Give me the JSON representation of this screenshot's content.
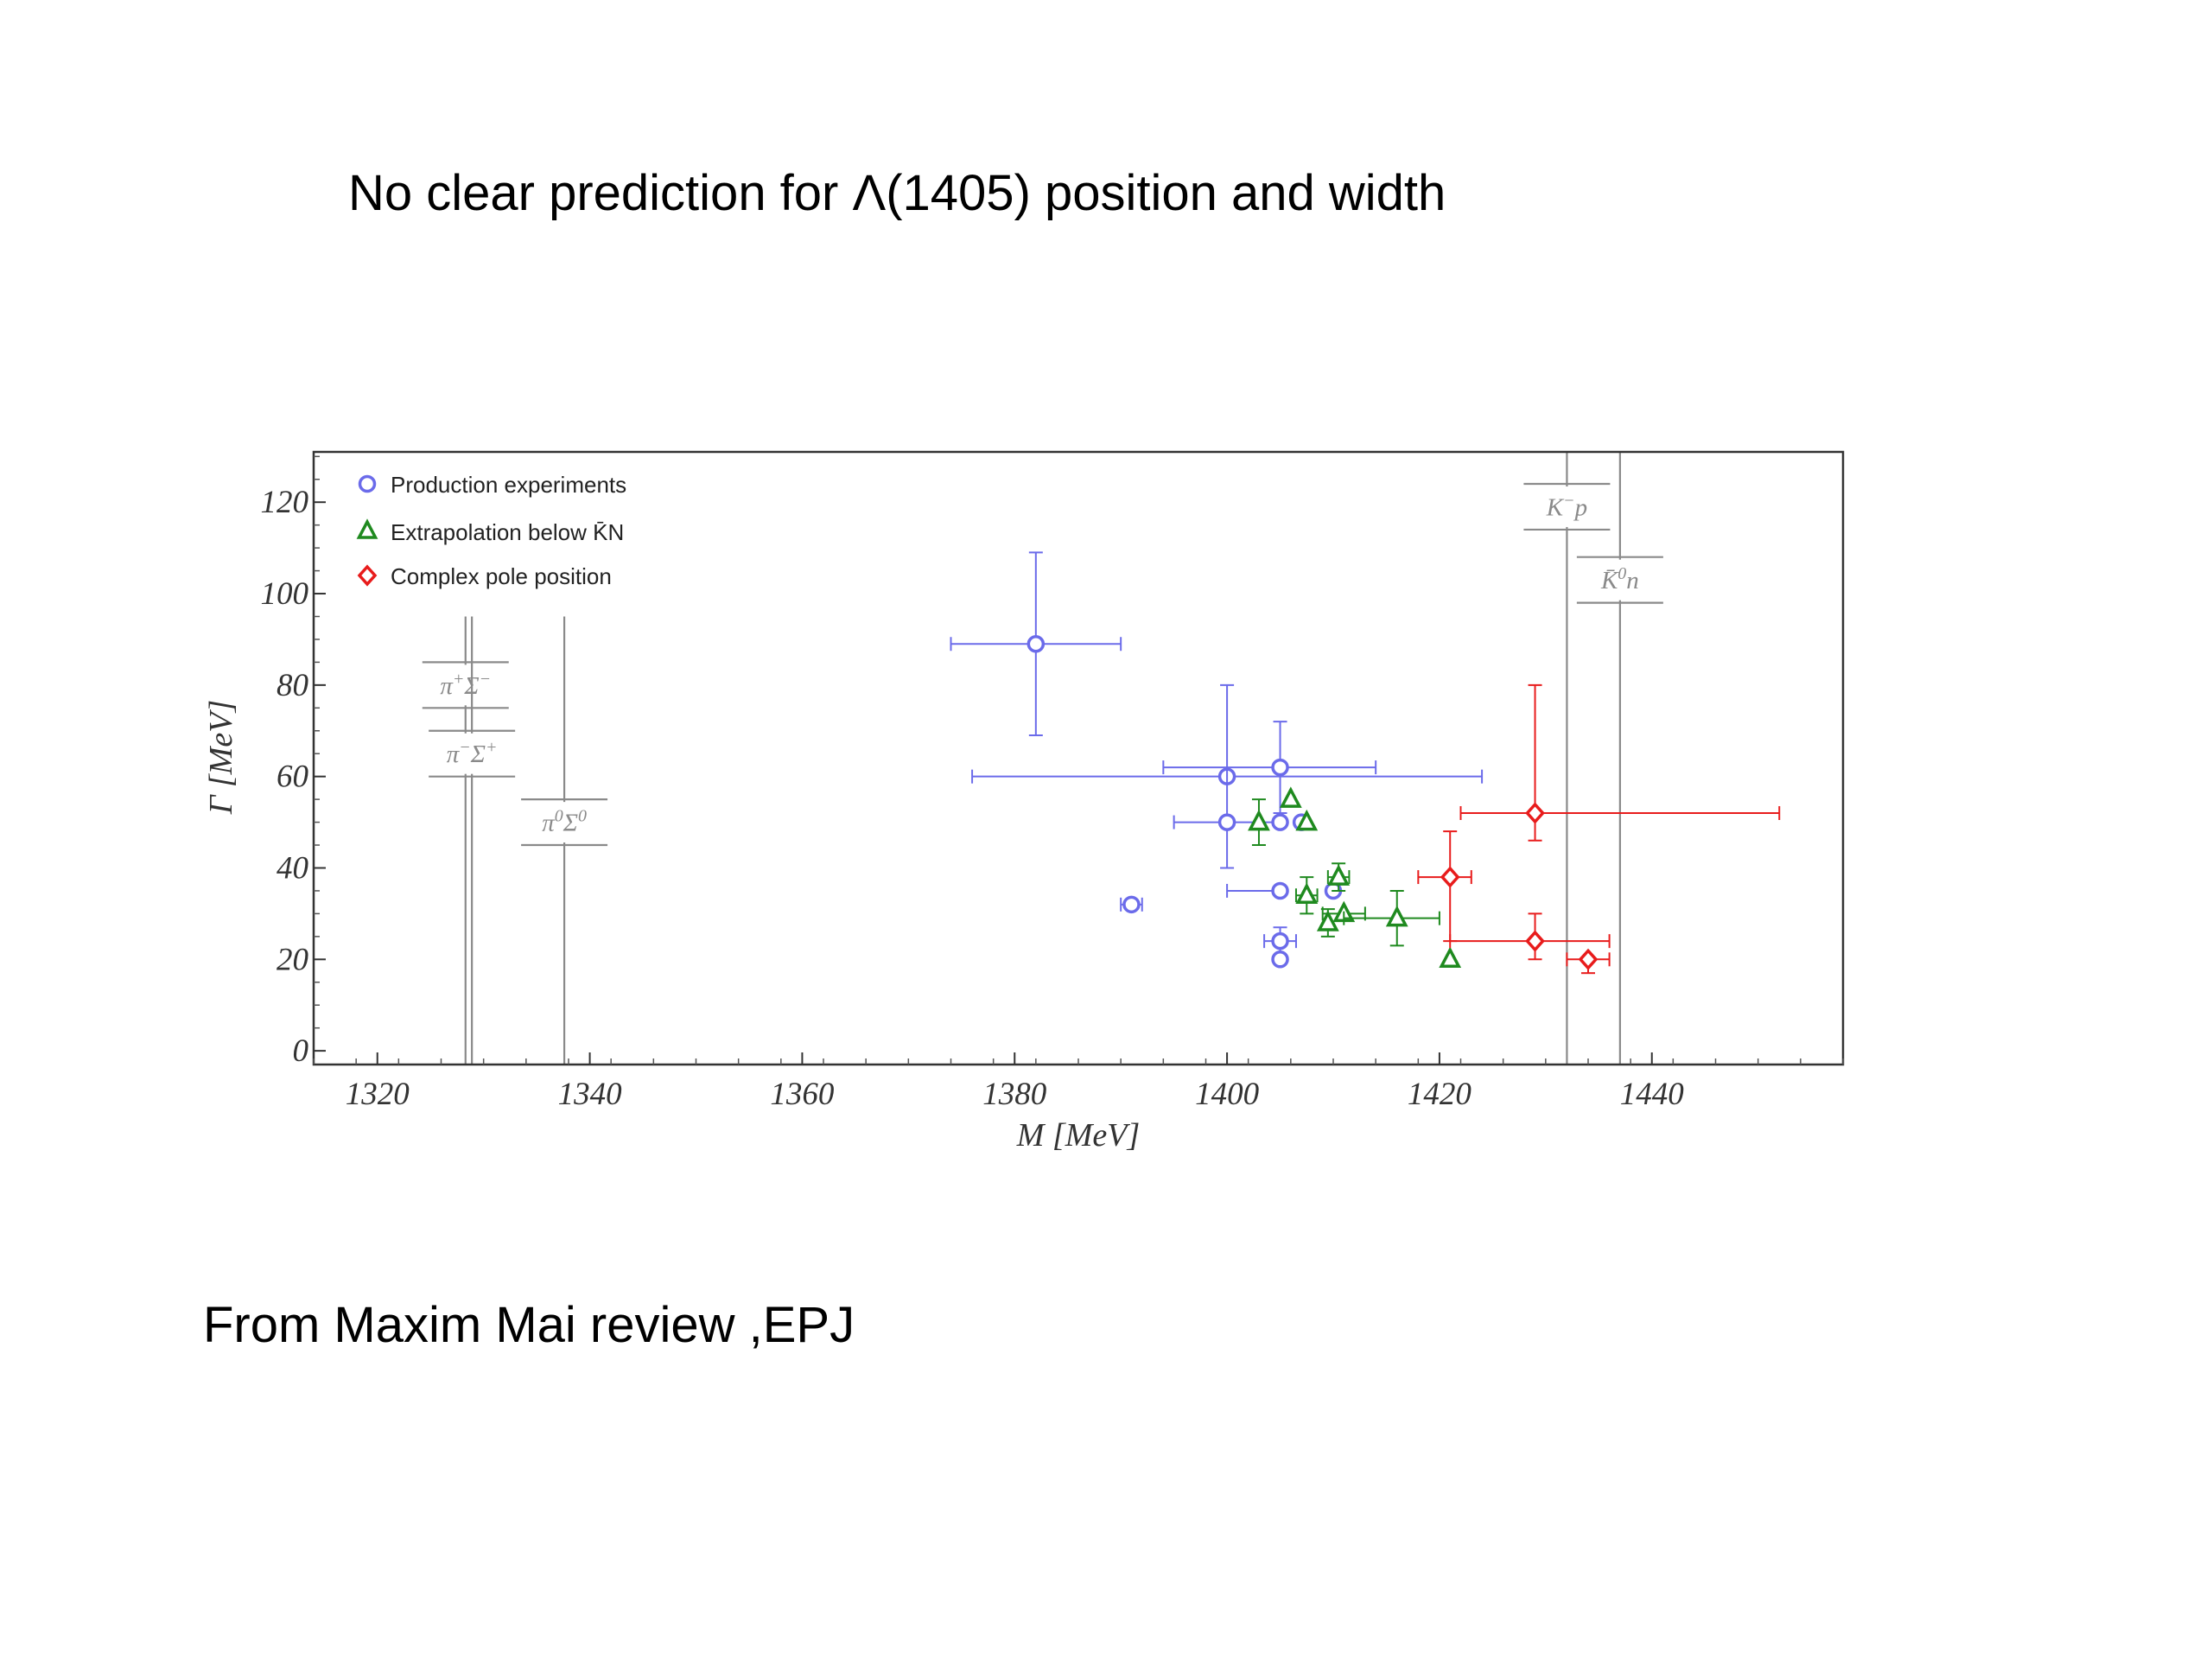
{
  "slide": {
    "title": "No clear prediction for Λ(1405)  position and width",
    "footer": "From Maxim Mai review ,EPJ"
  },
  "chart_data": {
    "type": "scatter",
    "title": "",
    "xlabel": "M [MeV]",
    "ylabel": "Γ [MeV]",
    "xlim": [
      1314,
      1458
    ],
    "ylim": [
      -3,
      131
    ],
    "xticks": [
      1320,
      1340,
      1360,
      1380,
      1400,
      1420,
      1440
    ],
    "yticks": [
      0,
      20,
      40,
      60,
      80,
      100,
      120
    ],
    "grid": false,
    "legend_position": "top-left",
    "colors": {
      "production": "#6b6bea",
      "extrapolation": "#1f8a1f",
      "pole": "#e81c1c",
      "threshold": "#8a8a8a"
    },
    "series": [
      {
        "name": "Production experiments",
        "marker": "circle",
        "points": [
          {
            "x": 1382,
            "y": 89,
            "xerr": [
              8,
              8
            ],
            "yerr": [
              20,
              20
            ]
          },
          {
            "x": 1400,
            "y": 60,
            "xerr": [
              24,
              24
            ],
            "yerr": [
              0,
              0
            ]
          },
          {
            "x": 1405,
            "y": 62,
            "xerr": [
              11,
              9
            ],
            "yerr": [
              10,
              10
            ]
          },
          {
            "x": 1400,
            "y": 50,
            "xerr": [
              5,
              5
            ],
            "yerr": [
              10,
              30
            ]
          },
          {
            "x": 1405,
            "y": 50,
            "xerr": [
              0,
              0
            ],
            "yerr": [
              0,
              0
            ]
          },
          {
            "x": 1407,
            "y": 50,
            "xerr": [
              0,
              0
            ],
            "yerr": [
              0,
              0
            ]
          },
          {
            "x": 1391,
            "y": 32,
            "xerr": [
              1,
              1
            ],
            "yerr": [
              0,
              0
            ]
          },
          {
            "x": 1405,
            "y": 35,
            "xerr": [
              5,
              0
            ],
            "yerr": [
              0,
              0
            ]
          },
          {
            "x": 1410,
            "y": 35,
            "xerr": [
              0,
              0
            ],
            "yerr": [
              0,
              0
            ]
          },
          {
            "x": 1405,
            "y": 24,
            "xerr": [
              1.5,
              1.5
            ],
            "yerr": [
              3,
              3
            ]
          },
          {
            "x": 1405,
            "y": 20,
            "xerr": [
              0,
              0
            ],
            "yerr": [
              0,
              0
            ]
          }
        ]
      },
      {
        "name": "Extrapolation below K̄N",
        "marker": "triangle",
        "points": [
          {
            "x": 1406,
            "y": 55,
            "xerr": [
              0,
              0
            ],
            "yerr": [
              0,
              0
            ]
          },
          {
            "x": 1403,
            "y": 50,
            "xerr": [
              0,
              0
            ],
            "yerr": [
              5,
              5
            ]
          },
          {
            "x": 1407.5,
            "y": 50,
            "xerr": [
              0,
              0
            ],
            "yerr": [
              0,
              0
            ]
          },
          {
            "x": 1410.5,
            "y": 38,
            "xerr": [
              1,
              1
            ],
            "yerr": [
              3,
              3
            ]
          },
          {
            "x": 1407.5,
            "y": 34,
            "xerr": [
              1,
              1
            ],
            "yerr": [
              4,
              4
            ]
          },
          {
            "x": 1411,
            "y": 30,
            "xerr": [
              2,
              2
            ],
            "yerr": [
              0,
              0
            ]
          },
          {
            "x": 1409.5,
            "y": 28,
            "xerr": [
              0,
              0
            ],
            "yerr": [
              3,
              3
            ]
          },
          {
            "x": 1416,
            "y": 29,
            "xerr": [
              5,
              4
            ],
            "yerr": [
              6,
              6
            ]
          },
          {
            "x": 1421,
            "y": 20,
            "xerr": [
              0,
              0
            ],
            "yerr": [
              0,
              0
            ]
          }
        ]
      },
      {
        "name": "Complex pole position",
        "marker": "diamond",
        "points": [
          {
            "x": 1429,
            "y": 52,
            "xerr": [
              7,
              23
            ],
            "yerr": [
              6,
              28
            ]
          },
          {
            "x": 1421,
            "y": 38,
            "xerr": [
              3,
              2
            ],
            "yerr": [
              14,
              10
            ]
          },
          {
            "x": 1429,
            "y": 24,
            "xerr": [
              8,
              7
            ],
            "yerr": [
              4,
              6
            ]
          },
          {
            "x": 1434,
            "y": 20,
            "xerr": [
              2,
              2
            ],
            "yerr": [
              3,
              0
            ]
          }
        ]
      }
    ],
    "thresholds": [
      {
        "label_main": "π",
        "label_sup": "+",
        "label_main2": "Σ",
        "label_sup2": "−",
        "x": 1328.3,
        "box_y": [
          75,
          85
        ]
      },
      {
        "label_main": "π",
        "label_sup": "−",
        "label_main2": "Σ",
        "label_sup2": "+",
        "x": 1328.9,
        "box_y": [
          60,
          70
        ]
      },
      {
        "label_main": "π",
        "label_sup": "0",
        "label_main2": "Σ",
        "label_sup2": "0",
        "x": 1337.6,
        "box_y": [
          45,
          55
        ]
      },
      {
        "label_main": "K",
        "label_sup": "−",
        "label_main2": "p",
        "label_sup2": "",
        "x": 1432,
        "box_y": [
          114,
          124
        ]
      },
      {
        "label_main": "K̄",
        "label_sup": "0",
        "label_main2": "n",
        "label_sup2": "",
        "x": 1437,
        "box_y": [
          98,
          108
        ]
      }
    ]
  }
}
